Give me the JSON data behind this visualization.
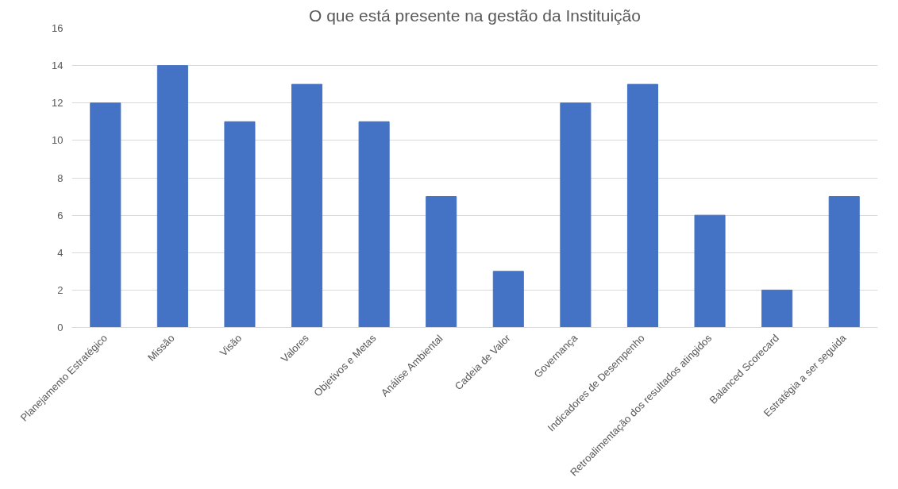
{
  "chart_data": {
    "type": "bar",
    "title": "O que está presente na gestão da Instituição",
    "categories": [
      "Planejamento Estratégico",
      "Missão",
      "Visão",
      "Valores",
      "Objetivos e Metas",
      "Análise Ambiental",
      "Cadeia de Valor",
      "Governança",
      "Indicadores de Desempenho",
      "Retroalimentação dos resultados atingidos",
      "Balanced Scorecard",
      "Estratégia a ser seguida"
    ],
    "values": [
      12,
      14,
      11,
      13,
      11,
      7,
      3,
      12,
      13,
      6,
      2,
      7
    ],
    "color": "#4472c4",
    "ylim": [
      0,
      16
    ],
    "yticks": [
      0,
      2,
      4,
      6,
      8,
      10,
      12,
      14,
      16
    ],
    "grid": "y"
  }
}
